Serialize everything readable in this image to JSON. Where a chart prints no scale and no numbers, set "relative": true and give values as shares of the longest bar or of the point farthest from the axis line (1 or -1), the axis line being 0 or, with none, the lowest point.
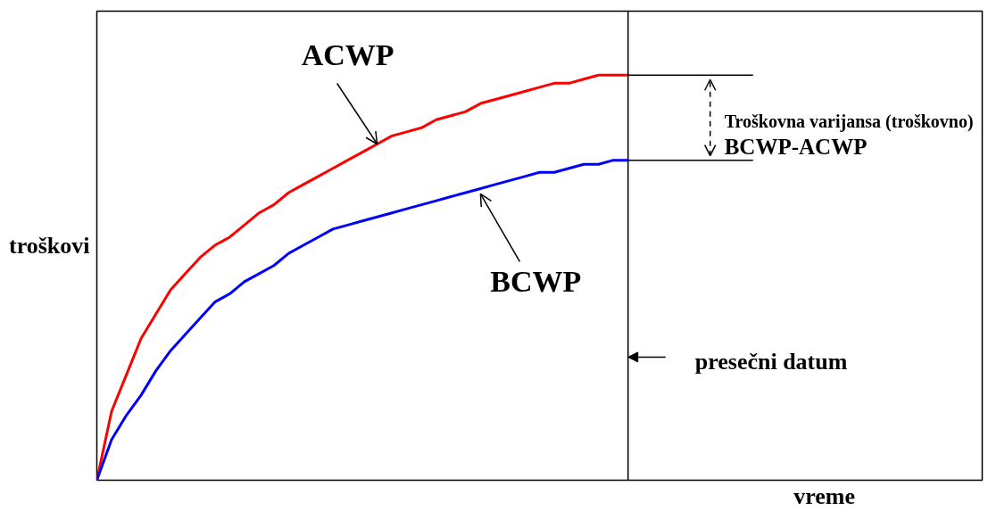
{
  "chart_data": {
    "type": "line",
    "relative": true,
    "xlabel": "vreme",
    "ylabel": "troškovi",
    "categories": [
      null,
      null,
      null,
      null,
      null,
      null,
      null,
      null,
      null,
      null,
      null,
      null,
      null,
      null,
      null,
      null,
      null,
      null,
      null,
      null,
      null,
      null,
      null,
      null,
      null,
      null,
      null,
      null,
      null,
      null,
      null,
      null,
      null,
      null,
      null,
      null,
      null,
      null,
      null,
      null,
      null,
      null,
      null,
      null,
      null,
      null,
      null,
      null,
      null,
      null,
      null,
      null,
      null,
      null,
      null,
      null,
      null,
      null,
      null,
      null,
      null
    ],
    "series": [
      {
        "name": "ACWP",
        "color": "#ff0000",
        "values": [
          0,
          0.17,
          0.26,
          0.35,
          0.41,
          0.47,
          0.51,
          0.55,
          0.58,
          0.6,
          0.63,
          0.66,
          0.68,
          0.71,
          0.73,
          0.75,
          0.77,
          0.79,
          0.81,
          0.83,
          0.85,
          0.86,
          0.87,
          0.89,
          0.9,
          0.91,
          0.93,
          0.94,
          0.95,
          0.96,
          0.97,
          0.98,
          0.98,
          0.99,
          1.0,
          1.0,
          1.0,
          null,
          null,
          null,
          null,
          null,
          null,
          null,
          null,
          null,
          null,
          null,
          null,
          null,
          null,
          null,
          null,
          null,
          null,
          null,
          null,
          null,
          null,
          null,
          null
        ]
      },
      {
        "name": "BCWP",
        "color": "#0000ff",
        "values": [
          0,
          0.1,
          0.16,
          0.21,
          0.27,
          0.32,
          0.36,
          0.4,
          0.44,
          0.46,
          0.49,
          0.51,
          0.53,
          0.56,
          0.58,
          0.6,
          0.62,
          0.63,
          0.64,
          0.65,
          0.66,
          0.67,
          0.68,
          0.69,
          0.7,
          0.71,
          0.72,
          0.73,
          0.74,
          0.75,
          0.76,
          0.76,
          0.77,
          0.78,
          0.78,
          0.79,
          0.79,
          null,
          null,
          null,
          null,
          null,
          null,
          null,
          null,
          null,
          null,
          null,
          null,
          null,
          null,
          null,
          null,
          null,
          null,
          null,
          null,
          null,
          null,
          null,
          null
        ]
      }
    ],
    "annotations": [
      "Troškovna varijansa (troškovno)",
      "BCWP-ACWP",
      "presečni datum"
    ],
    "grid": false
  }
}
